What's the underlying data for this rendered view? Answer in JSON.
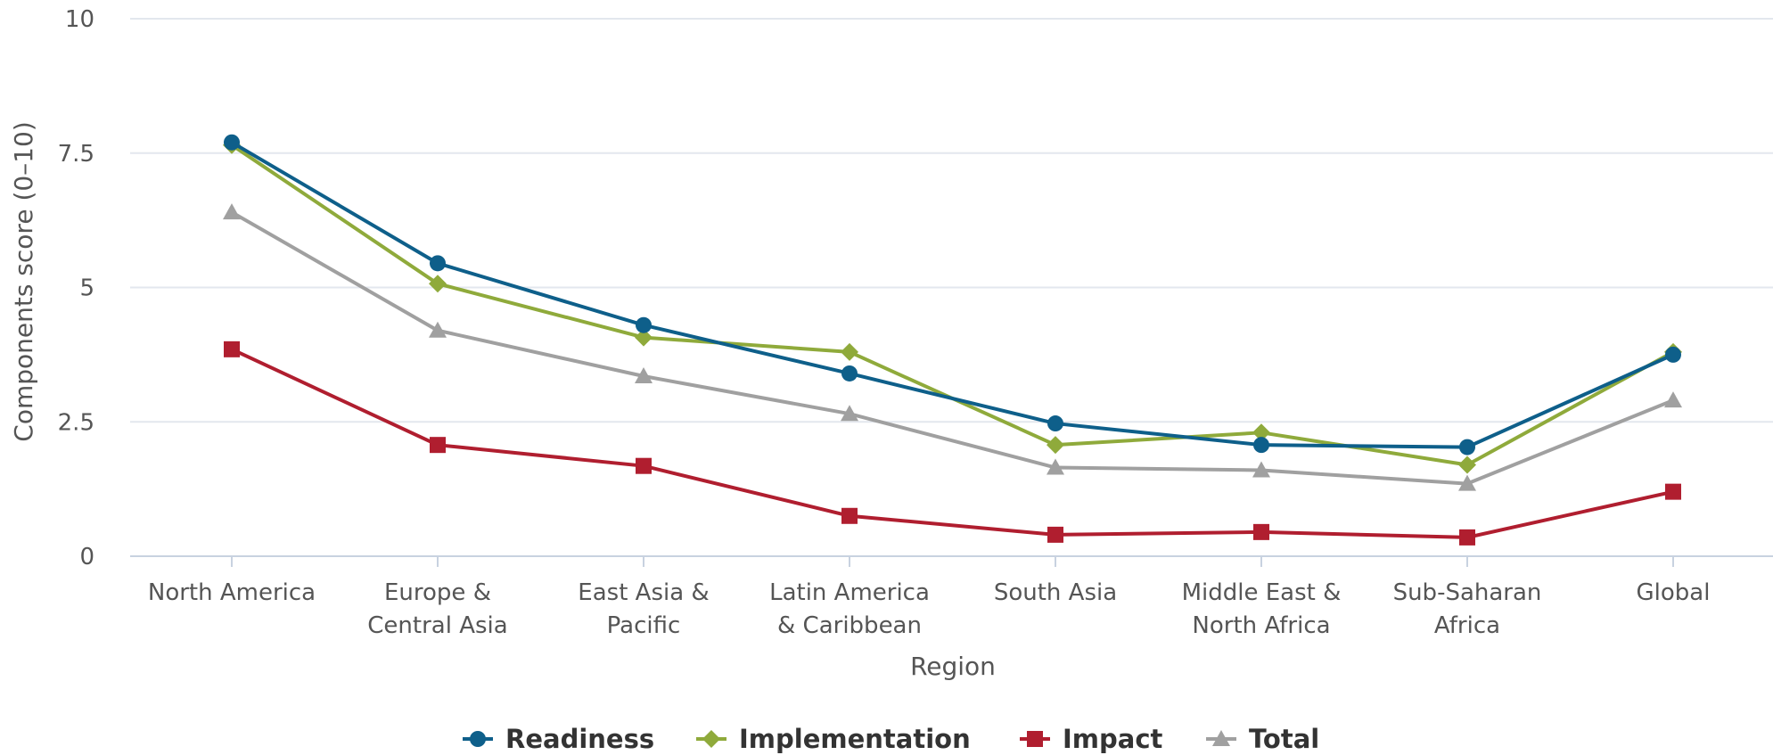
{
  "chart_data": {
    "type": "line",
    "title": "",
    "xlabel": "Region",
    "ylabel": "Components score (0–10)",
    "ylim": [
      0,
      10
    ],
    "yticks": [
      {
        "value": 0,
        "label": "0"
      },
      {
        "value": 2.5,
        "label": "2.5"
      },
      {
        "value": 5,
        "label": "5"
      },
      {
        "value": 7.5,
        "label": "7.5"
      },
      {
        "value": 10,
        "label": "10"
      }
    ],
    "categories": [
      [
        "North America"
      ],
      [
        "Europe &",
        "Central Asia"
      ],
      [
        "East Asia &",
        "Pacific"
      ],
      [
        "Latin America",
        "& Caribbean"
      ],
      [
        "South Asia"
      ],
      [
        "Middle East &",
        "North Africa"
      ],
      [
        "Sub-Saharan",
        "Africa"
      ],
      [
        "Global"
      ]
    ],
    "grid": true,
    "legend_position": "bottom-center",
    "series": [
      {
        "name": "Readiness",
        "color": "#0e5f8a",
        "marker": "circle",
        "values": [
          7.7,
          5.45,
          4.3,
          3.4,
          2.47,
          2.07,
          2.03,
          3.75
        ]
      },
      {
        "name": "Implementation",
        "color": "#8faa3b",
        "marker": "diamond",
        "values": [
          7.65,
          5.07,
          4.07,
          3.8,
          2.07,
          2.3,
          1.7,
          3.8
        ]
      },
      {
        "name": "Impact",
        "color": "#b01e2f",
        "marker": "square",
        "values": [
          3.85,
          2.07,
          1.68,
          0.75,
          0.4,
          0.45,
          0.35,
          1.2
        ]
      },
      {
        "name": "Total",
        "color": "#a0a0a0",
        "marker": "triangle",
        "values": [
          6.4,
          4.2,
          3.35,
          2.65,
          1.65,
          1.6,
          1.35,
          2.9
        ]
      }
    ]
  }
}
